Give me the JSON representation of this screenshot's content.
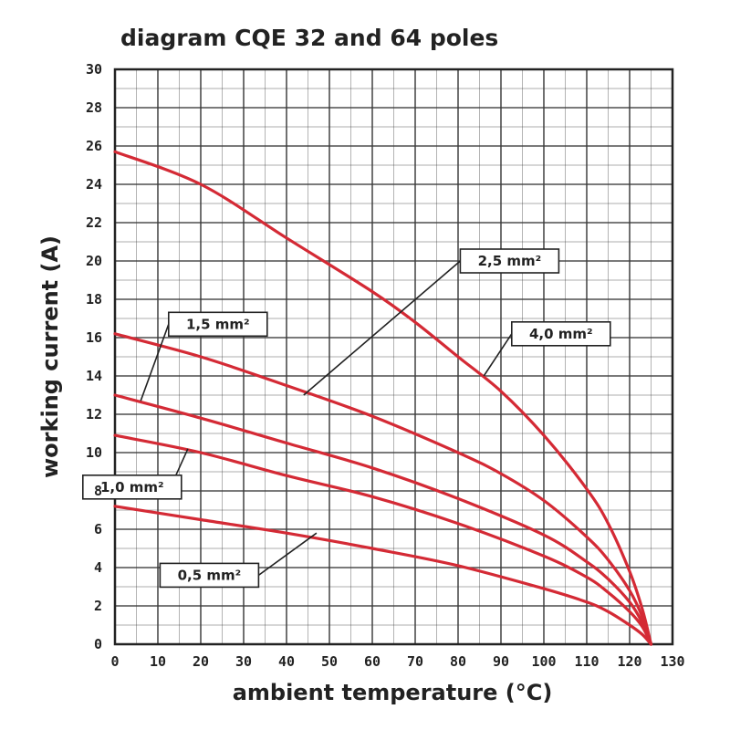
{
  "chart_data": {
    "type": "line",
    "title": "diagram CQE 32 and 64 poles",
    "xlabel": "ambient temperature (°C)",
    "ylabel": "working current (A)",
    "xlim": [
      0,
      130
    ],
    "ylim": [
      0,
      30
    ],
    "x_ticks": [
      "0",
      "10",
      "20",
      "30",
      "40",
      "50",
      "60",
      "70",
      "80",
      "90",
      "100",
      "110",
      "120",
      "130"
    ],
    "y_ticks": [
      "0",
      "2",
      "4",
      "6",
      "8",
      "10",
      "12",
      "14",
      "16",
      "18",
      "20",
      "22",
      "24",
      "26",
      "28",
      "30"
    ],
    "grid": true,
    "line_color": "#d42a35",
    "grid_color": "#3a3a3a",
    "series": [
      {
        "name": "4,0 mm²",
        "x": [
          0,
          20,
          40,
          60,
          70,
          80,
          90,
          100,
          110,
          115,
          120,
          123,
          125
        ],
        "values": [
          25.7,
          24.0,
          21.2,
          18.4,
          16.8,
          15.0,
          13.2,
          10.9,
          8.1,
          6.3,
          3.8,
          1.8,
          0
        ]
      },
      {
        "name": "2,5 mm²",
        "x": [
          0,
          20,
          40,
          60,
          80,
          90,
          100,
          110,
          115,
          120,
          123,
          125
        ],
        "values": [
          16.2,
          15.0,
          13.5,
          11.9,
          10.0,
          8.9,
          7.5,
          5.6,
          4.4,
          2.8,
          1.4,
          0
        ]
      },
      {
        "name": "1,5 mm²",
        "x": [
          0,
          20,
          40,
          60,
          80,
          100,
          110,
          115,
          120,
          123,
          125
        ],
        "values": [
          13.0,
          11.8,
          10.5,
          9.2,
          7.6,
          5.7,
          4.3,
          3.4,
          2.2,
          1.1,
          0
        ]
      },
      {
        "name": "1,0 mm²",
        "x": [
          0,
          20,
          40,
          60,
          80,
          100,
          110,
          115,
          120,
          123,
          125
        ],
        "values": [
          10.9,
          10.0,
          8.8,
          7.7,
          6.3,
          4.6,
          3.5,
          2.7,
          1.7,
          0.9,
          0
        ]
      },
      {
        "name": "0,5 mm²",
        "x": [
          0,
          20,
          40,
          60,
          80,
          100,
          110,
          115,
          120,
          123,
          125
        ],
        "values": [
          7.2,
          6.5,
          5.8,
          5.0,
          4.1,
          2.9,
          2.2,
          1.7,
          1.0,
          0.5,
          0
        ]
      }
    ],
    "annotations": [
      {
        "text": "1,5 mm²",
        "series": "1,5 mm²",
        "point": [
          6,
          12.7
        ],
        "box": [
          24,
          16.7
        ]
      },
      {
        "text": "2,5 mm²",
        "series": "2,5 mm²",
        "point": [
          44,
          13.0
        ],
        "box": [
          92,
          20.0
        ]
      },
      {
        "text": "4,0 mm²",
        "series": "4,0 mm²",
        "point": [
          86,
          14.0
        ],
        "box": [
          104,
          16.2
        ]
      },
      {
        "text": "1,0 mm²",
        "series": "1,0 mm²",
        "point": [
          17,
          10.2
        ],
        "box": [
          4,
          8.2
        ]
      },
      {
        "text": "0,5 mm²",
        "series": "0,5 mm²",
        "point": [
          47,
          5.8
        ],
        "box": [
          22,
          3.6
        ]
      }
    ]
  }
}
